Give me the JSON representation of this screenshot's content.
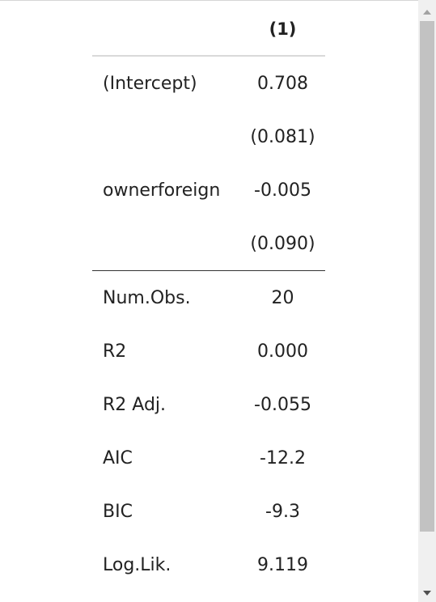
{
  "table": {
    "column_header": "(1)",
    "rows": [
      {
        "label": "(Intercept)",
        "value": "0.708"
      },
      {
        "label": "",
        "value": "(0.081)"
      },
      {
        "label": "ownerforeign",
        "value": "-0.005"
      },
      {
        "label": "",
        "value": "(0.090)"
      }
    ],
    "stats": [
      {
        "label": "Num.Obs.",
        "value": "20"
      },
      {
        "label": "R2",
        "value": "0.000"
      },
      {
        "label": "R2 Adj.",
        "value": "-0.055"
      },
      {
        "label": "AIC",
        "value": "-12.2"
      },
      {
        "label": "BIC",
        "value": "-9.3"
      },
      {
        "label": "Log.Lik.",
        "value": "9.119"
      }
    ]
  },
  "scrollbar": {
    "up_icon": "chevron-up-icon",
    "down_icon": "chevron-down-icon",
    "thumb_fraction": 0.85,
    "position_fraction": 0.0
  }
}
